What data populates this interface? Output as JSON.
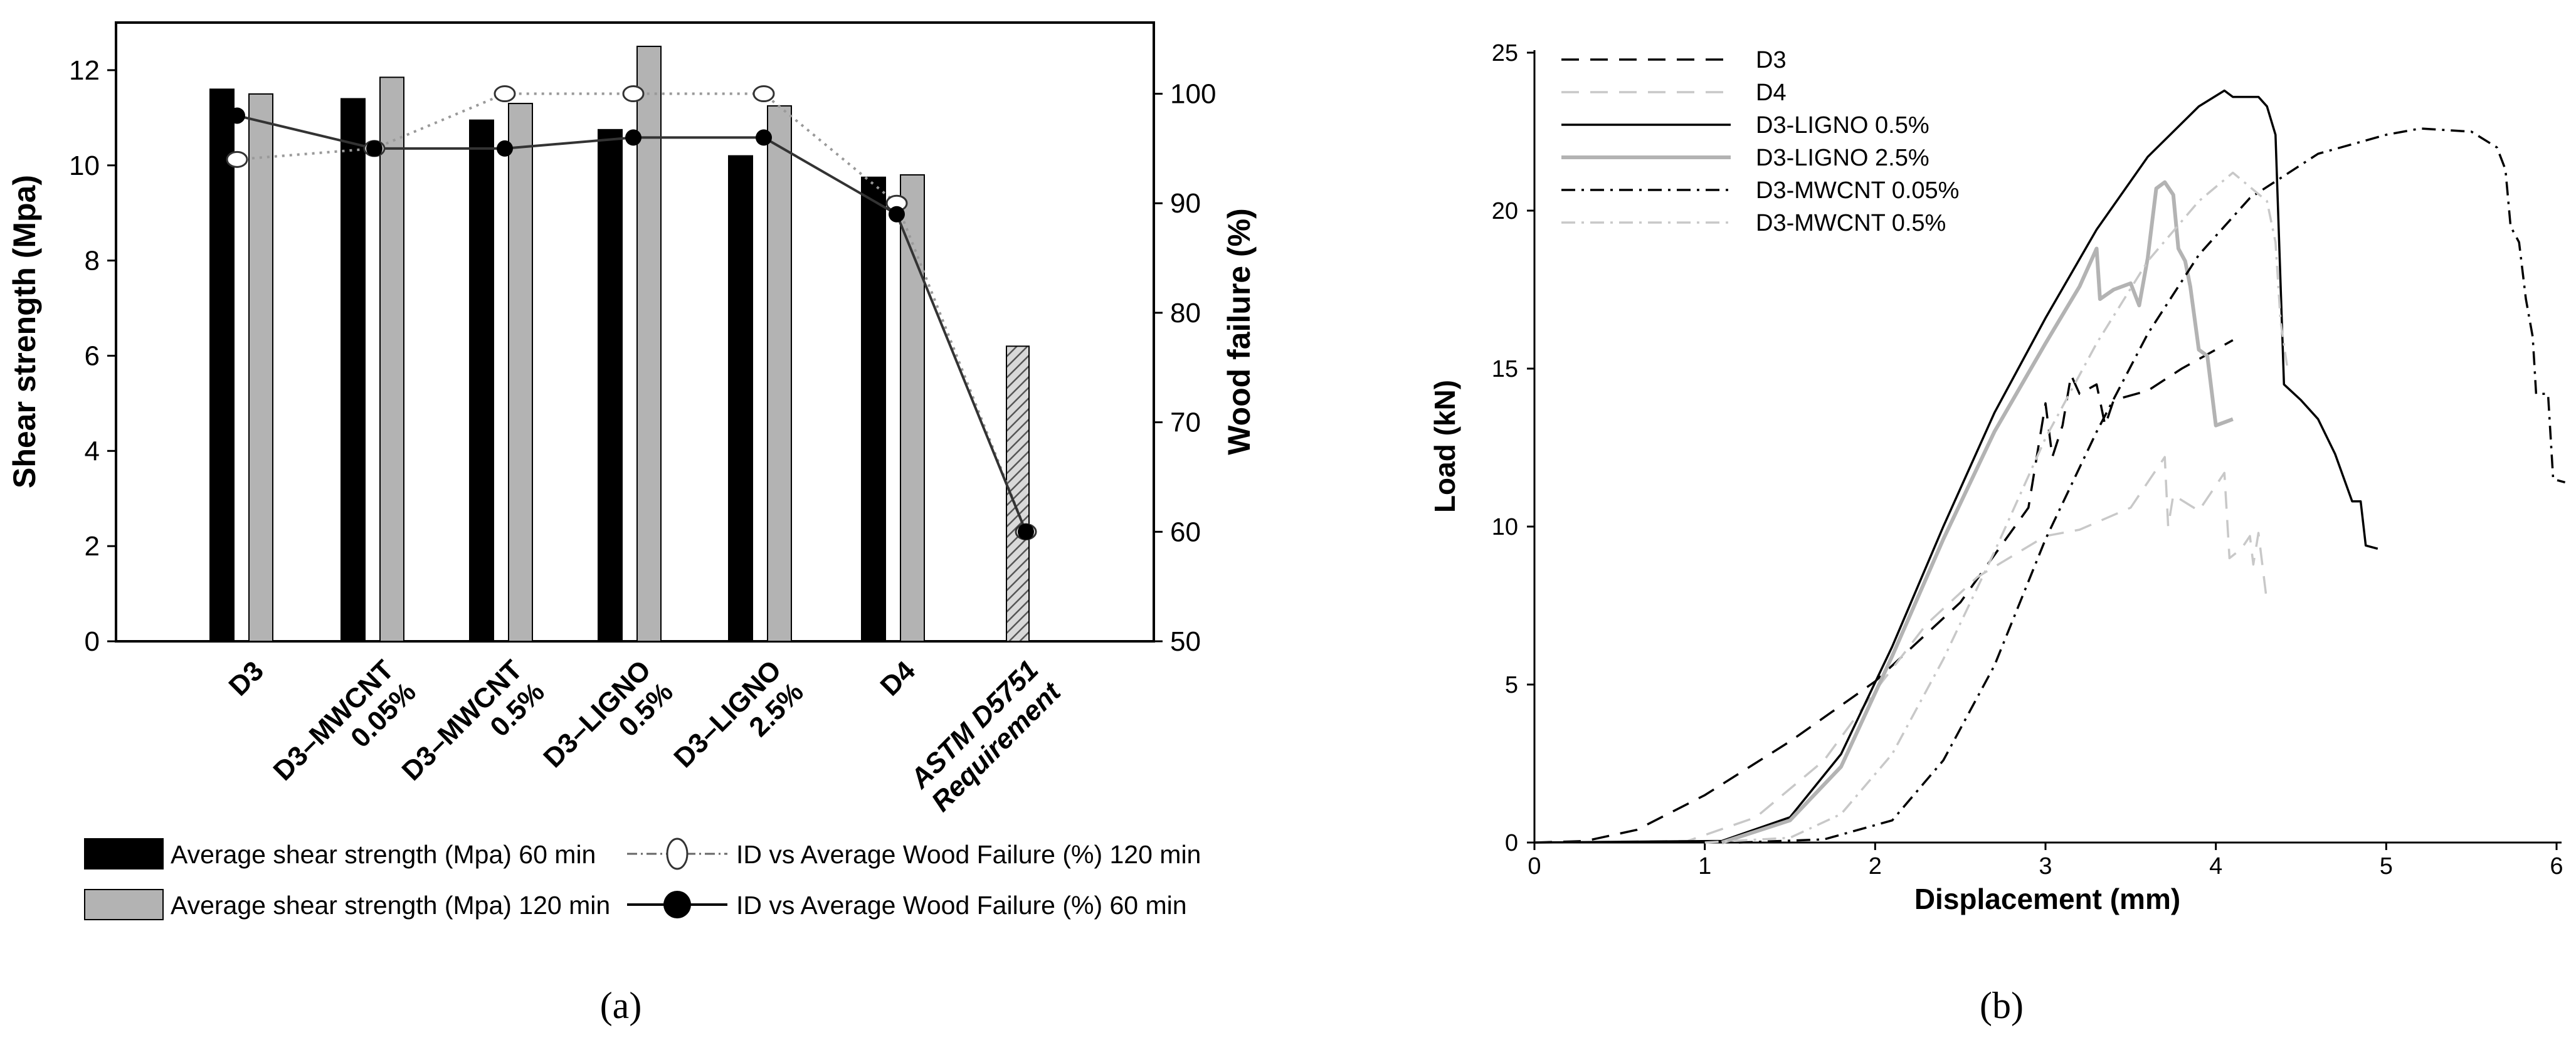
{
  "chart_data": [
    {
      "panel_label": "(a)",
      "type": "bar",
      "ylabel": "Shear strength (Mpa)",
      "y2label": "Wood failure (%)",
      "ylim": [
        0,
        13
      ],
      "y2lim": [
        50,
        106.5
      ],
      "yticks": [
        0,
        2,
        4,
        6,
        8,
        10,
        12
      ],
      "y2ticks": [
        50,
        60,
        70,
        80,
        90,
        100
      ],
      "categories": [
        "D3",
        "D3–MWCNT 0.05%",
        "D3–MWCNT 0.5%",
        "D3–LIGNO 0.5%",
        "D3–LIGNO 2.5%",
        "D4",
        "ASTM D5751 Requirement"
      ],
      "category_lines": [
        [
          "D3"
        ],
        [
          "D3–MWCNT",
          "0.05%"
        ],
        [
          "D3–MWCNT",
          "0.5%"
        ],
        [
          "D3–LIGNO",
          "0.5%"
        ],
        [
          "D3–LIGNO",
          "2.5%"
        ],
        [
          "D4"
        ],
        [
          "ASTM D5751",
          "Requirement"
        ]
      ],
      "series": [
        {
          "name": "Average shear strength (Mpa) 60 min",
          "kind": "bar",
          "axis": "left",
          "color": "#000000",
          "values": [
            11.6,
            11.4,
            10.95,
            10.75,
            10.2,
            9.75,
            null
          ]
        },
        {
          "name": "Average shear strength (Mpa) 120 min",
          "kind": "bar",
          "axis": "left",
          "color": "#b3b3b3",
          "values": [
            11.5,
            11.85,
            11.3,
            12.5,
            11.25,
            9.8,
            null
          ]
        },
        {
          "name": "ASTM D5751 Requirement",
          "kind": "bar",
          "axis": "left",
          "pattern": "hatch",
          "values": [
            null,
            null,
            null,
            null,
            null,
            null,
            6.2
          ]
        },
        {
          "name": "ID vs Average Wood Failure (%) 120 min",
          "kind": "line",
          "axis": "right",
          "style": "dotted-open-circle",
          "values": [
            94,
            95,
            100,
            100,
            100,
            90,
            60
          ]
        },
        {
          "name": "ID vs Average Wood Failure (%) 60 min",
          "kind": "line",
          "axis": "right",
          "style": "solid-filled-circle",
          "values": [
            98,
            95,
            95,
            96,
            96,
            89,
            60
          ]
        }
      ],
      "legend": {
        "left": [
          "Average shear strength (Mpa) 60 min",
          "Average shear strength (Mpa) 120 min"
        ],
        "right": [
          "ID vs Average Wood Failure (%) 120 min",
          "ID vs Average Wood Failure (%) 60 min"
        ],
        "placement": "bottom"
      }
    },
    {
      "panel_label": "(b)",
      "type": "line",
      "xlabel": "Displacement (mm)",
      "ylabel": "Load (kN)",
      "xlim": [
        0,
        6
      ],
      "ylim": [
        0,
        25
      ],
      "xticks": [
        0,
        1,
        2,
        3,
        4,
        5,
        6
      ],
      "yticks": [
        0,
        5,
        10,
        15,
        20,
        25
      ],
      "legend_placement": "top-left",
      "series": [
        {
          "name": "D3",
          "color": "#000000",
          "dash": "28,18",
          "points": [
            [
              0,
              0
            ],
            [
              0.3,
              0.05
            ],
            [
              0.6,
              0.4
            ],
            [
              1.0,
              1.5
            ],
            [
              1.5,
              3.2
            ],
            [
              2.0,
              5.1
            ],
            [
              2.5,
              7.6
            ],
            [
              2.9,
              10.6
            ],
            [
              3.0,
              13.9
            ],
            [
              3.04,
              12.2
            ],
            [
              3.1,
              13.2
            ],
            [
              3.15,
              14.8
            ],
            [
              3.2,
              14.2
            ],
            [
              3.3,
              14.5
            ],
            [
              3.35,
              13.2
            ],
            [
              3.4,
              14.0
            ],
            [
              3.6,
              14.3
            ],
            [
              3.8,
              15.0
            ],
            [
              4.1,
              15.9
            ]
          ]
        },
        {
          "name": "D4",
          "color": "#c8c8c8",
          "dash": "28,18",
          "points": [
            [
              0,
              0
            ],
            [
              0.9,
              0.05
            ],
            [
              1.3,
              0.8
            ],
            [
              1.7,
              2.6
            ],
            [
              2.0,
              4.8
            ],
            [
              2.3,
              6.9
            ],
            [
              2.6,
              8.4
            ],
            [
              3.0,
              9.7
            ],
            [
              3.2,
              9.9
            ],
            [
              3.5,
              10.6
            ],
            [
              3.7,
              12.2
            ],
            [
              3.72,
              10.0
            ],
            [
              3.75,
              11.0
            ],
            [
              3.9,
              10.5
            ],
            [
              4.05,
              11.7
            ],
            [
              4.08,
              9.0
            ],
            [
              4.15,
              9.3
            ],
            [
              4.2,
              9.7
            ],
            [
              4.22,
              8.8
            ],
            [
              4.25,
              9.8
            ],
            [
              4.3,
              7.6
            ]
          ]
        },
        {
          "name": "D3-LIGNO 0.5%",
          "color": "#000000",
          "dash": "",
          "points": [
            [
              0,
              0
            ],
            [
              1.1,
              0.05
            ],
            [
              1.5,
              0.8
            ],
            [
              1.8,
              2.8
            ],
            [
              2.1,
              6.2
            ],
            [
              2.4,
              10.0
            ],
            [
              2.7,
              13.6
            ],
            [
              3.0,
              16.6
            ],
            [
              3.3,
              19.4
            ],
            [
              3.6,
              21.7
            ],
            [
              3.9,
              23.3
            ],
            [
              4.05,
              23.8
            ],
            [
              4.1,
              23.6
            ],
            [
              4.25,
              23.6
            ],
            [
              4.3,
              23.3
            ],
            [
              4.35,
              22.4
            ],
            [
              4.4,
              14.5
            ],
            [
              4.5,
              14.0
            ],
            [
              4.6,
              13.4
            ],
            [
              4.7,
              12.3
            ],
            [
              4.8,
              10.8
            ],
            [
              4.85,
              10.8
            ],
            [
              4.88,
              9.4
            ],
            [
              4.95,
              9.3
            ]
          ]
        },
        {
          "name": "D3-LIGNO 2.5%",
          "color": "#b3b3b3",
          "dash": "",
          "width": 6,
          "points": [
            [
              1.1,
              0
            ],
            [
              1.5,
              0.7
            ],
            [
              1.8,
              2.4
            ],
            [
              2.1,
              5.9
            ],
            [
              2.4,
              9.6
            ],
            [
              2.7,
              13.0
            ],
            [
              3.0,
              15.8
            ],
            [
              3.2,
              17.6
            ],
            [
              3.3,
              18.8
            ],
            [
              3.32,
              17.2
            ],
            [
              3.4,
              17.5
            ],
            [
              3.5,
              17.7
            ],
            [
              3.55,
              17.0
            ],
            [
              3.6,
              18.5
            ],
            [
              3.65,
              20.7
            ],
            [
              3.7,
              20.9
            ],
            [
              3.75,
              20.5
            ],
            [
              3.78,
              18.8
            ],
            [
              3.82,
              18.4
            ],
            [
              3.85,
              17.6
            ],
            [
              3.9,
              15.6
            ],
            [
              3.95,
              15.4
            ],
            [
              4.0,
              13.2
            ],
            [
              4.05,
              13.3
            ],
            [
              4.1,
              13.4
            ]
          ]
        },
        {
          "name": "D3-MWCNT 0.05%",
          "color": "#000000",
          "dash": "22,10,4,10",
          "points": [
            [
              1.2,
              0
            ],
            [
              1.7,
              0.1
            ],
            [
              2.1,
              0.7
            ],
            [
              2.4,
              2.6
            ],
            [
              2.7,
              5.6
            ],
            [
              3.0,
              9.6
            ],
            [
              3.3,
              13.0
            ],
            [
              3.6,
              16.1
            ],
            [
              3.9,
              18.6
            ],
            [
              4.2,
              20.4
            ],
            [
              4.6,
              21.8
            ],
            [
              5.0,
              22.4
            ],
            [
              5.2,
              22.6
            ],
            [
              5.5,
              22.5
            ],
            [
              5.65,
              22.0
            ],
            [
              5.7,
              21.3
            ],
            [
              5.73,
              19.5
            ],
            [
              5.78,
              19.0
            ],
            [
              5.82,
              17.2
            ],
            [
              5.86,
              16.0
            ],
            [
              5.88,
              14.2
            ],
            [
              5.95,
              14.2
            ],
            [
              5.98,
              11.5
            ],
            [
              6.05,
              11.4
            ]
          ]
        },
        {
          "name": "D3-MWCNT 0.5%",
          "color": "#c8c8c8",
          "dash": "22,10,4,10",
          "points": [
            [
              1.0,
              0
            ],
            [
              1.5,
              0.15
            ],
            [
              1.8,
              0.9
            ],
            [
              2.1,
              2.8
            ],
            [
              2.4,
              5.8
            ],
            [
              2.7,
              9.2
            ],
            [
              3.0,
              12.8
            ],
            [
              3.3,
              15.8
            ],
            [
              3.6,
              18.4
            ],
            [
              3.9,
              20.3
            ],
            [
              4.1,
              21.2
            ],
            [
              4.3,
              20.3
            ],
            [
              4.35,
              19.0
            ],
            [
              4.38,
              16.5
            ],
            [
              4.42,
              15.0
            ]
          ]
        }
      ]
    }
  ]
}
